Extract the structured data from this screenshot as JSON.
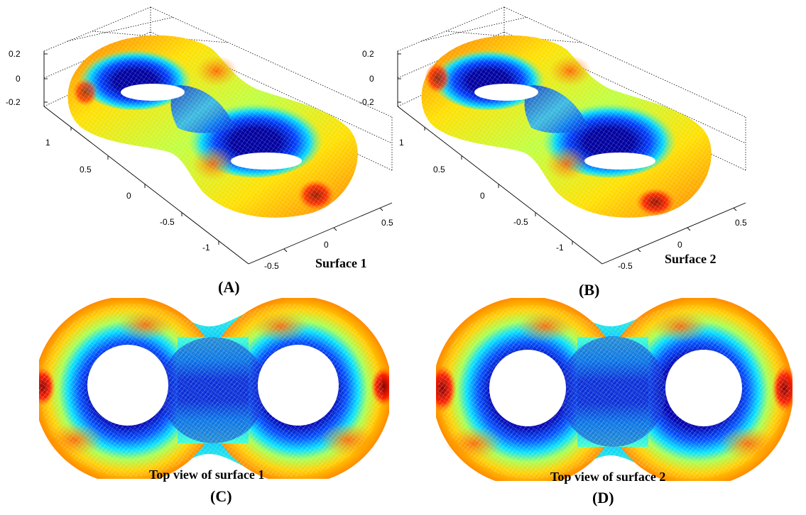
{
  "panels": {
    "a": {
      "letter": "(A)",
      "caption": "Surface 1",
      "z_ticks": [
        "0.2",
        "0",
        "-0.2"
      ],
      "y_ticks": [
        "1",
        "0.5",
        "0",
        "-0.5",
        "-1"
      ],
      "x_ticks": [
        "-0.5",
        "0",
        "0.5"
      ]
    },
    "b": {
      "letter": "(B)",
      "caption": "Surface 2",
      "z_ticks": [
        "0.2",
        "0",
        "-0.2"
      ],
      "y_ticks": [
        "1",
        "0.5",
        "0",
        "-0.5",
        "-1"
      ],
      "x_ticks": [
        "-0.5",
        "0",
        "0.5"
      ]
    },
    "c": {
      "letter": "(C)",
      "caption": "Top view of surface 1"
    },
    "d": {
      "letter": "(D)",
      "caption": "Top view of surface 2"
    }
  },
  "colormap": [
    "#00008f",
    "#0000ff",
    "#00ffff",
    "#ffff00",
    "#ff7f00",
    "#ff0000",
    "#7f0000"
  ]
}
